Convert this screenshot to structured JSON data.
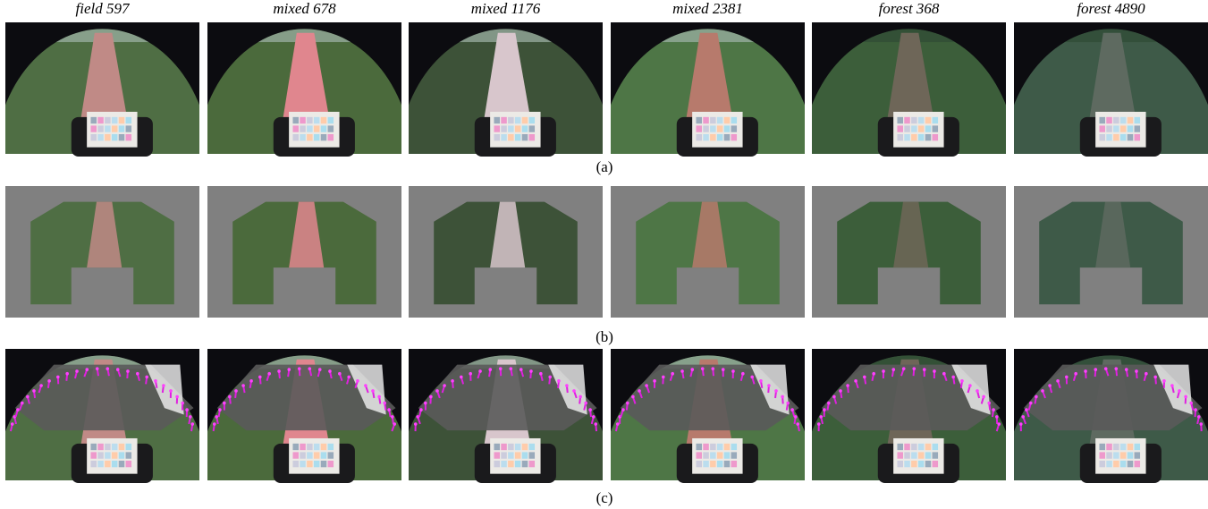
{
  "columns": [
    "field 597",
    "mixed 678",
    "mixed 1176",
    "mixed 2381",
    "forest 368",
    "forest 4890"
  ],
  "captions": [
    "(a)",
    "(b)",
    "(c)"
  ]
}
